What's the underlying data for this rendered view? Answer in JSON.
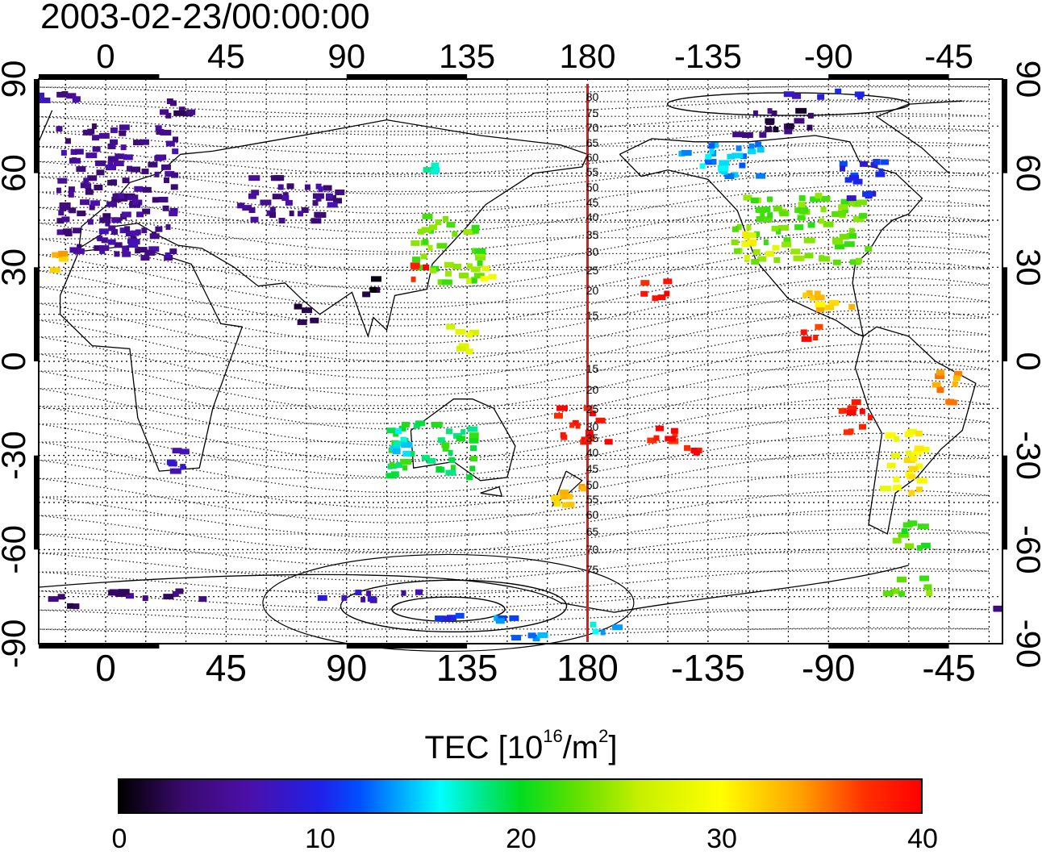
{
  "title": "2003-02-23/00:00:00",
  "map": {
    "lon_ticks": [
      "0",
      "45",
      "90",
      "135",
      "180",
      "-135",
      "-90",
      "-45"
    ],
    "lat_ticks": [
      "90",
      "60",
      "30",
      "0",
      "-30",
      "-60",
      "-90"
    ],
    "meridian_line_color": "#d02020",
    "meridian_labels": [
      "80",
      "75",
      "70",
      "65",
      "60",
      "55",
      "50",
      "45",
      "40",
      "35",
      "30",
      "25",
      "20",
      "15",
      "15",
      "20",
      "25",
      "30",
      "35",
      "40",
      "45",
      "50",
      "55",
      "60",
      "65",
      "70",
      "75"
    ],
    "tec_patches": [
      {
        "lon": -15,
        "lat": 85,
        "w": 24,
        "h": 4,
        "tec": 6
      },
      {
        "lon": 30,
        "lat": 80,
        "w": 18,
        "h": 6,
        "tec": 4
      },
      {
        "lon": 5,
        "lat": 55,
        "w": 45,
        "h": 40,
        "tec": 5
      },
      {
        "lon": 10,
        "lat": 38,
        "w": 28,
        "h": 10,
        "tec": 6
      },
      {
        "lon": 60,
        "lat": 52,
        "w": 20,
        "h": 15,
        "tec": 5
      },
      {
        "lon": 80,
        "lat": 50,
        "w": 20,
        "h": 12,
        "tec": 5
      },
      {
        "lon": -18,
        "lat": 32,
        "w": 6,
        "h": 6,
        "tec": 33
      },
      {
        "lon": 128,
        "lat": 36,
        "w": 25,
        "h": 22,
        "tec": 23
      },
      {
        "lon": 118,
        "lat": 28,
        "w": 8,
        "h": 6,
        "tec": 38
      },
      {
        "lon": 140,
        "lat": 28,
        "w": 10,
        "h": 6,
        "tec": 28
      },
      {
        "lon": 122,
        "lat": 62,
        "w": 4,
        "h": 3,
        "tec": 17
      },
      {
        "lon": 133,
        "lat": 8,
        "w": 10,
        "h": 10,
        "tec": 27
      },
      {
        "lon": 122,
        "lat": -28,
        "w": 32,
        "h": 18,
        "tec": 20
      },
      {
        "lon": 110,
        "lat": -25,
        "w": 8,
        "h": 12,
        "tec": 16
      },
      {
        "lon": 173,
        "lat": -42,
        "w": 12,
        "h": 10,
        "tec": 33
      },
      {
        "lon": -155,
        "lat": 22,
        "w": 10,
        "h": 8,
        "tec": 39
      },
      {
        "lon": 178,
        "lat": -20,
        "w": 20,
        "h": 12,
        "tec": 39
      },
      {
        "lon": -153,
        "lat": -22,
        "w": 12,
        "h": 8,
        "tec": 39
      },
      {
        "lon": -100,
        "lat": 42,
        "w": 50,
        "h": 22,
        "tec": 23
      },
      {
        "lon": -115,
        "lat": 38,
        "w": 12,
        "h": 10,
        "tec": 29
      },
      {
        "lon": -130,
        "lat": 65,
        "w": 30,
        "h": 12,
        "tec": 14
      },
      {
        "lon": -110,
        "lat": 76,
        "w": 30,
        "h": 8,
        "tec": 3
      },
      {
        "lon": -75,
        "lat": 58,
        "w": 20,
        "h": 12,
        "tec": 10
      },
      {
        "lon": -90,
        "lat": 18,
        "w": 18,
        "h": 8,
        "tec": 32
      },
      {
        "lon": -95,
        "lat": 8,
        "w": 10,
        "h": 6,
        "tec": 38
      },
      {
        "lon": -60,
        "lat": -32,
        "w": 18,
        "h": 20,
        "tec": 30
      },
      {
        "lon": -60,
        "lat": -55,
        "w": 14,
        "h": 10,
        "tec": 22
      },
      {
        "lon": -60,
        "lat": -72,
        "w": 16,
        "h": 6,
        "tec": 23
      },
      {
        "lon": 25,
        "lat": -32,
        "w": 10,
        "h": 8,
        "tec": 8
      },
      {
        "lon": 75,
        "lat": 15,
        "w": 8,
        "h": 6,
        "tec": 2
      },
      {
        "lon": 100,
        "lat": 25,
        "w": 6,
        "h": 8,
        "tec": 2
      },
      {
        "lon": 20,
        "lat": -75,
        "w": 40,
        "h": 4,
        "tec": 4
      },
      {
        "lon": -20,
        "lat": -77,
        "w": 20,
        "h": 4,
        "tec": 3
      },
      {
        "lon": 100,
        "lat": -75,
        "w": 40,
        "h": 3,
        "tec": 7
      },
      {
        "lon": 130,
        "lat": -82,
        "w": 12,
        "h": 2,
        "tec": 10
      },
      {
        "lon": 150,
        "lat": -82,
        "w": 12,
        "h": 2,
        "tec": 13
      },
      {
        "lon": 188,
        "lat": -85,
        "w": 12,
        "h": 3,
        "tec": 15
      },
      {
        "lon": 160,
        "lat": -88,
        "w": 14,
        "h": 2,
        "tec": 13
      },
      {
        "lon": -90,
        "lat": 85,
        "w": 30,
        "h": 3,
        "tec": 9
      },
      {
        "lon": -80,
        "lat": -18,
        "w": 14,
        "h": 10,
        "tec": 39
      },
      {
        "lon": -140,
        "lat": -28,
        "w": 6,
        "h": 6,
        "tec": 39
      },
      {
        "lon": -45,
        "lat": -8,
        "w": 10,
        "h": 12,
        "tec": 34
      }
    ]
  },
  "colorbar": {
    "label_prefix": "TEC  [10",
    "label_exp1": "16",
    "label_mid": "/m",
    "label_exp2": "2",
    "label_suffix": "]",
    "min": 0,
    "max": 40,
    "ticks": [
      "0",
      "10",
      "20",
      "30",
      "40"
    ]
  }
}
